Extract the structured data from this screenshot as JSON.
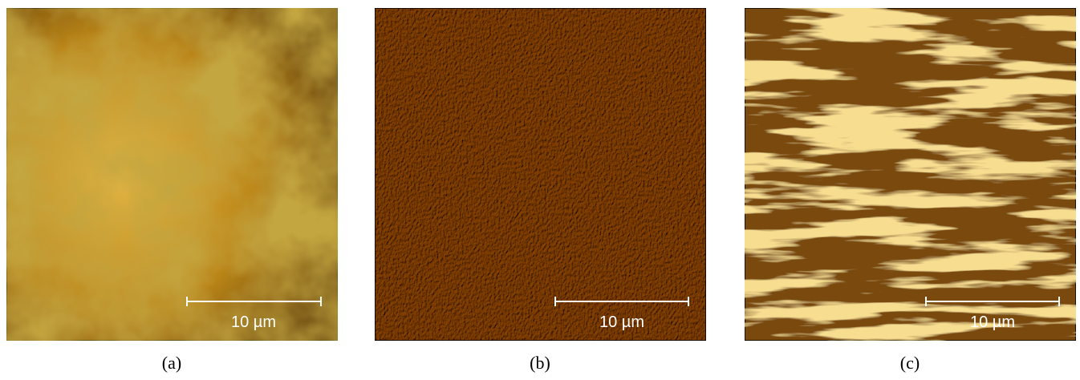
{
  "panels": [
    {
      "caption": "(a)",
      "scale_bar": "10 µm"
    },
    {
      "caption": "(b)",
      "scale_bar": "10 µm"
    },
    {
      "caption": "(c)",
      "scale_bar": "10 µm"
    }
  ]
}
